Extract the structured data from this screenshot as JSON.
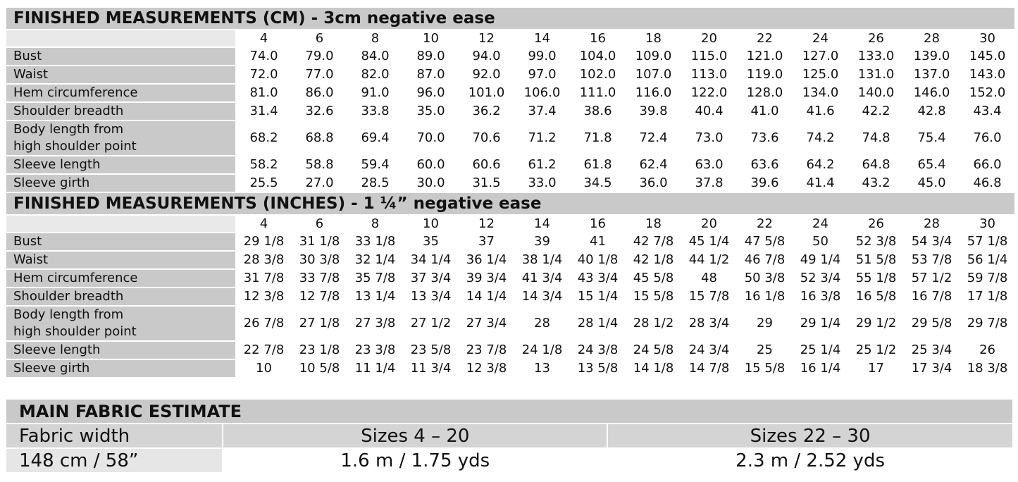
{
  "cm": {
    "title": "FINISHED MEASUREMENTS (CM) - 3cm negative ease",
    "sizes": [
      "4",
      "6",
      "8",
      "10",
      "12",
      "14",
      "16",
      "18",
      "20",
      "22",
      "24",
      "26",
      "28",
      "30"
    ],
    "rows": [
      {
        "label": "Bust",
        "values": [
          "74.0",
          "79.0",
          "84.0",
          "89.0",
          "94.0",
          "99.0",
          "104.0",
          "109.0",
          "115.0",
          "121.0",
          "127.0",
          "133.0",
          "139.0",
          "145.0"
        ]
      },
      {
        "label": "Waist",
        "values": [
          "72.0",
          "77.0",
          "82.0",
          "87.0",
          "92.0",
          "97.0",
          "102.0",
          "107.0",
          "113.0",
          "119.0",
          "125.0",
          "131.0",
          "137.0",
          "143.0"
        ]
      },
      {
        "label": "Hem circumference",
        "values": [
          "81.0",
          "86.0",
          "91.0",
          "96.0",
          "101.0",
          "106.0",
          "111.0",
          "116.0",
          "122.0",
          "128.0",
          "134.0",
          "140.0",
          "146.0",
          "152.0"
        ]
      },
      {
        "label": "Shoulder breadth",
        "values": [
          "31.4",
          "32.6",
          "33.8",
          "35.0",
          "36.2",
          "37.4",
          "38.6",
          "39.8",
          "40.4",
          "41.0",
          "41.6",
          "42.2",
          "42.8",
          "43.4"
        ]
      },
      {
        "label_line1": "Body length from",
        "label_line2": "high shoulder point",
        "values": [
          "68.2",
          "68.8",
          "69.4",
          "70.0",
          "70.6",
          "71.2",
          "71.8",
          "72.4",
          "73.0",
          "73.6",
          "74.2",
          "74.8",
          "75.4",
          "76.0"
        ]
      },
      {
        "label": "Sleeve length",
        "values": [
          "58.2",
          "58.8",
          "59.4",
          "60.0",
          "60.6",
          "61.2",
          "61.8",
          "62.4",
          "63.0",
          "63.6",
          "64.2",
          "64.8",
          "65.4",
          "66.0"
        ]
      },
      {
        "label": "Sleeve girth",
        "values": [
          "25.5",
          "27.0",
          "28.5",
          "30.0",
          "31.5",
          "33.0",
          "34.5",
          "36.0",
          "37.8",
          "39.6",
          "41.4",
          "43.2",
          "45.0",
          "46.8"
        ]
      }
    ]
  },
  "inches": {
    "title": "FINISHED MEASUREMENTS (INCHES) - 1 ¼” negative ease",
    "sizes": [
      "4",
      "6",
      "8",
      "10",
      "12",
      "14",
      "16",
      "18",
      "20",
      "22",
      "24",
      "26",
      "28",
      "30"
    ],
    "rows": [
      {
        "label": "Bust",
        "values": [
          "29 1/8",
          "31 1/8",
          "33 1/8",
          "35",
          "37",
          "39",
          "41",
          "42 7/8",
          "45 1/4",
          "47 5/8",
          "50",
          "52 3/8",
          "54 3/4",
          "57 1/8"
        ]
      },
      {
        "label": "Waist",
        "values": [
          "28 3/8",
          "30 3/8",
          "32 1/4",
          "34 1/4",
          "36 1/4",
          "38 1/4",
          "40 1/8",
          "42 1/8",
          "44 1/2",
          "46 7/8",
          "49 1/4",
          "51 5/8",
          "53 7/8",
          "56 1/4"
        ]
      },
      {
        "label": "Hem circumference",
        "values": [
          "31 7/8",
          "33 7/8",
          "35 7/8",
          "37 3/4",
          "39 3/4",
          "41 3/4",
          "43 3/4",
          "45 5/8",
          "48",
          "50 3/8",
          "52 3/4",
          "55 1/8",
          "57 1/2",
          "59 7/8"
        ]
      },
      {
        "label": "Shoulder breadth",
        "values": [
          "12 3/8",
          "12 7/8",
          "13 1/4",
          "13 3/4",
          "14 1/4",
          "14 3/4",
          "15 1/4",
          "15 5/8",
          "15 7/8",
          "16 1/8",
          "16 3/8",
          "16 5/8",
          "16 7/8",
          "17 1/8"
        ]
      },
      {
        "label_line1": "Body length from",
        "label_line2": "high shoulder point",
        "values": [
          "26 7/8",
          "27 1/8",
          "27 3/8",
          "27 1/2",
          "27 3/4",
          "28",
          "28 1/4",
          "28 1/2",
          "28 3/4",
          "29",
          "29 1/4",
          "29 1/2",
          "29 5/8",
          "29 7/8"
        ]
      },
      {
        "label": "Sleeve length",
        "values": [
          "22 7/8",
          "23 1/8",
          "23 3/8",
          "23 5/8",
          "23 7/8",
          "24 1/8",
          "24 3/8",
          "24 5/8",
          "24 3/4",
          "25",
          "25 1/4",
          "25 1/2",
          "25 3/4",
          "26"
        ]
      },
      {
        "label": "Sleeve girth",
        "values": [
          "10",
          "10 5/8",
          "11 1/4",
          "11 3/4",
          "12 3/8",
          "13",
          "13 5/8",
          "14 1/8",
          "14 7/8",
          "15 5/8",
          "16 1/4",
          "17",
          "17 3/4",
          "18 3/8"
        ]
      }
    ]
  },
  "fabric": {
    "title": "MAIN FABRIC ESTIMATE",
    "width_label": "Fabric width",
    "col1": "Sizes 4 – 20",
    "col2": "Sizes 22 – 30",
    "row_label": "148 cm / 58”",
    "val1": "1.6 m / 1.75 yds",
    "val2": "2.3 m / 2.52 yds"
  },
  "colors": {
    "label_bg": "#c9c9c9",
    "cell_bg": "#ffffff"
  }
}
